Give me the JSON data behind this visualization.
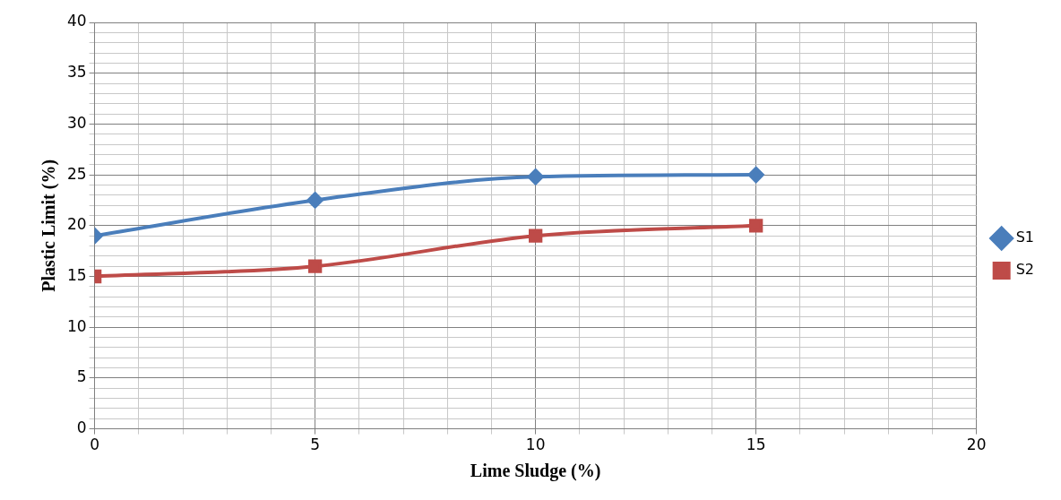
{
  "chart_data": {
    "type": "line",
    "xlabel": "Lime Sludge (%)",
    "ylabel": "Plastic Limit (%)",
    "x": [
      0,
      5,
      10,
      15
    ],
    "series": [
      {
        "name": "S1",
        "color": "#4a7ebb",
        "values": [
          19,
          22.5,
          24.8,
          25
        ],
        "marker": "diamond"
      },
      {
        "name": "S2",
        "color": "#be4b48",
        "values": [
          15,
          16,
          19,
          20
        ],
        "marker": "square"
      }
    ],
    "xlim": [
      0,
      20
    ],
    "xticks": [
      0,
      {
        "value": 1,
        "label": null
      },
      {
        "value": 2,
        "label": null
      },
      {
        "value": 3,
        "label": null
      },
      {
        "value": 4,
        "label": null
      },
      5,
      {
        "value": 6,
        "label": null
      },
      {
        "value": 7,
        "label": null
      },
      {
        "value": 8,
        "label": null
      },
      {
        "value": 9,
        "label": null
      },
      10,
      {
        "value": 11,
        "label": null
      },
      {
        "value": 12,
        "label": null
      },
      {
        "value": 13,
        "label": null
      },
      {
        "value": 14,
        "label": null
      },
      15,
      {
        "value": 16,
        "label": null
      },
      {
        "value": 17,
        "label": null
      },
      {
        "value": 18,
        "label": null
      },
      {
        "value": 19,
        "label": null
      },
      20
    ],
    "ylim": [
      0,
      40
    ],
    "yticks": [
      0,
      {
        "value": 1,
        "label": null
      },
      {
        "value": 2,
        "label": null
      },
      {
        "value": 3,
        "label": null
      },
      {
        "value": 4,
        "label": null
      },
      5,
      {
        "value": 6,
        "label": null
      },
      {
        "value": 7,
        "label": null
      },
      {
        "value": 8,
        "label": null
      },
      {
        "value": 9,
        "label": null
      },
      10,
      {
        "value": 11,
        "label": null
      },
      {
        "value": 12,
        "label": null
      },
      {
        "value": 13,
        "label": null
      },
      {
        "value": 14,
        "label": null
      },
      15,
      {
        "value": 16,
        "label": null
      },
      {
        "value": 17,
        "label": null
      },
      {
        "value": 18,
        "label": null
      },
      {
        "value": 19,
        "label": null
      },
      20,
      {
        "value": 21,
        "label": null
      },
      {
        "value": 22,
        "label": null
      },
      {
        "value": 23,
        "label": null
      },
      {
        "value": 24,
        "label": null
      },
      25,
      {
        "value": 26,
        "label": null
      },
      {
        "value": 27,
        "label": null
      },
      {
        "value": 28,
        "label": null
      },
      {
        "value": 29,
        "label": null
      },
      30,
      {
        "value": 31,
        "label": null
      },
      {
        "value": 32,
        "label": null
      },
      {
        "value": 33,
        "label": null
      },
      {
        "value": 34,
        "label": null
      },
      35,
      {
        "value": 36,
        "label": null
      },
      {
        "value": 37,
        "label": null
      },
      {
        "value": 38,
        "label": null
      },
      {
        "value": 39,
        "label": null
      },
      40
    ],
    "grid": true,
    "legend": "right",
    "line_style": "solid"
  }
}
